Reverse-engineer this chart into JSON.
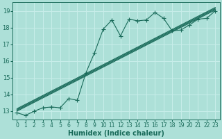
{
  "xlabel": "Humidex (Indice chaleur)",
  "ylabel": "",
  "bg_color": "#ade0d8",
  "grid_color": "#c8eeea",
  "line_color": "#1a6b5a",
  "xlim": [
    -0.5,
    23.5
  ],
  "ylim": [
    12.5,
    19.5
  ],
  "xticks": [
    0,
    1,
    2,
    3,
    4,
    5,
    6,
    7,
    8,
    9,
    10,
    11,
    12,
    13,
    14,
    15,
    16,
    17,
    18,
    19,
    20,
    21,
    22,
    23
  ],
  "yticks": [
    13,
    14,
    15,
    16,
    17,
    18,
    19
  ],
  "main_x": [
    0,
    1,
    2,
    3,
    4,
    5,
    6,
    7,
    8,
    9,
    10,
    11,
    12,
    13,
    14,
    15,
    16,
    17,
    18,
    19,
    20,
    21,
    22,
    23
  ],
  "main_y": [
    12.9,
    12.75,
    13.0,
    13.2,
    13.25,
    13.2,
    13.75,
    13.65,
    15.3,
    16.5,
    17.9,
    18.45,
    17.5,
    18.5,
    18.4,
    18.45,
    18.9,
    18.55,
    17.8,
    17.85,
    18.15,
    18.5,
    18.55,
    19.0
  ],
  "ref_lines": [
    {
      "x0": 0,
      "y0": 13.0,
      "x1": 23,
      "y1": 19.05
    },
    {
      "x0": 0,
      "y0": 13.05,
      "x1": 23,
      "y1": 19.1
    },
    {
      "x0": 0,
      "y0": 13.1,
      "x1": 23,
      "y1": 19.15
    },
    {
      "x0": 0,
      "y0": 13.15,
      "x1": 23,
      "y1": 19.2
    }
  ],
  "marker": "+",
  "markersize": 4,
  "linewidth": 0.8,
  "xlabel_fontsize": 7,
  "tick_fontsize": 5.5
}
